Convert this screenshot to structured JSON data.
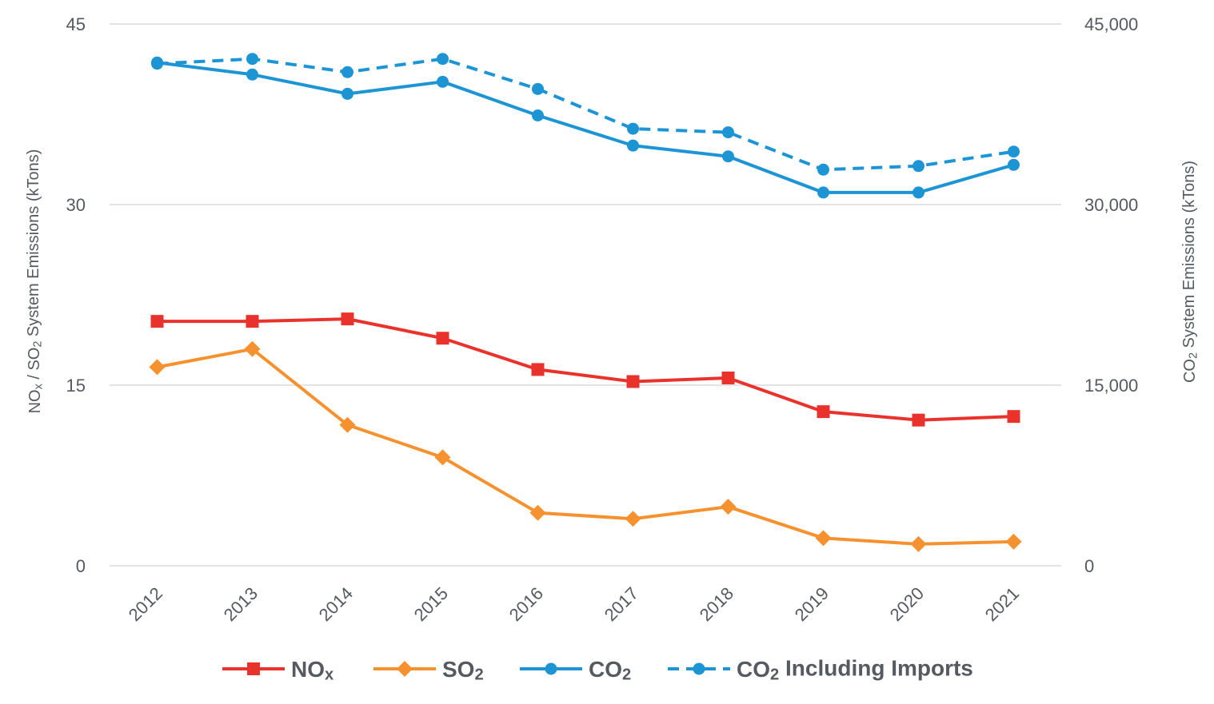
{
  "chart_data": {
    "type": "line",
    "title": "",
    "categories": [
      "2012",
      "2013",
      "2014",
      "2015",
      "2016",
      "2017",
      "2018",
      "2019",
      "2020",
      "2021"
    ],
    "y_left": {
      "label_parts": [
        "NO",
        "x",
        " / SO",
        "2",
        " System Emissions (kTons)"
      ],
      "ylim": [
        0,
        45
      ],
      "ticks": [
        0,
        15,
        30,
        45
      ],
      "tick_labels": [
        "0",
        "15",
        "30",
        "45"
      ]
    },
    "y_right": {
      "label_parts": [
        "CO",
        "2",
        " System Emissions (kTons)"
      ],
      "ylim": [
        0,
        45000
      ],
      "ticks": [
        0,
        15000,
        30000,
        45000
      ],
      "tick_labels": [
        "0",
        "15,000",
        "30,000",
        "45,000"
      ]
    },
    "grid": true,
    "legend_position": "bottom",
    "series": [
      {
        "name": "NOx",
        "legend_parts": [
          "NO",
          "x"
        ],
        "axis": "left",
        "color": "#e8322b",
        "marker": "square",
        "dash": false,
        "values": [
          20.3,
          20.3,
          20.5,
          18.9,
          16.3,
          15.3,
          15.6,
          12.8,
          12.1,
          12.4
        ]
      },
      {
        "name": "SO2",
        "legend_parts": [
          "SO",
          "2"
        ],
        "axis": "left",
        "color": "#f5922f",
        "marker": "diamond",
        "dash": false,
        "values": [
          16.5,
          18.0,
          11.7,
          9.0,
          4.4,
          3.9,
          4.9,
          2.3,
          1.8,
          2.0
        ]
      },
      {
        "name": "CO2",
        "legend_parts": [
          "CO",
          "2"
        ],
        "axis": "right",
        "color": "#1d95d5",
        "marker": "circle",
        "dash": false,
        "values": [
          41800,
          40800,
          39200,
          40200,
          37400,
          34900,
          34000,
          31000,
          31000,
          33300
        ]
      },
      {
        "name": "CO2 Including Imports",
        "legend_parts": [
          "CO",
          "2",
          " Including Imports"
        ],
        "axis": "right",
        "color": "#1d95d5",
        "marker": "circle",
        "dash": true,
        "values": [
          41700,
          42100,
          41000,
          42100,
          39600,
          36300,
          36000,
          32900,
          33200,
          34400
        ]
      }
    ]
  }
}
